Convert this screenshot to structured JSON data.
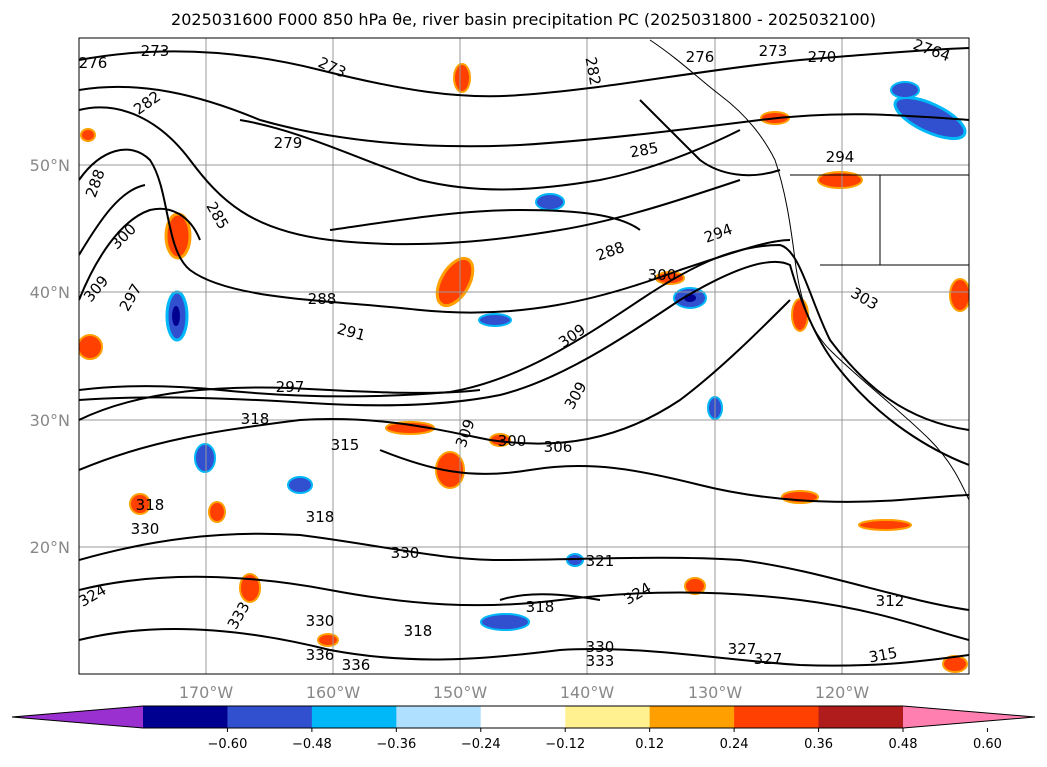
{
  "title": "2025031600 F000 850 hPa θe, river basin precipitation PC (2025031800 - 2025032100)",
  "map": {
    "lon_range": [
      -180,
      -110
    ],
    "lat_range": [
      10,
      60
    ],
    "lat_labels": [
      "50°N",
      "40°N",
      "30°N",
      "20°N"
    ],
    "lon_labels": [
      "170°W",
      "160°W",
      "150°W",
      "140°W",
      "130°W",
      "120°W"
    ],
    "contour_labels": [
      "273",
      "276",
      "273",
      "276",
      "273",
      "270",
      "2764",
      "282",
      "282",
      "279",
      "285",
      "294",
      "288",
      "285",
      "300",
      "294",
      "288",
      "309",
      "297",
      "288",
      "291",
      "303",
      "309",
      "297",
      "318",
      "300",
      "306",
      "315",
      "309",
      "309",
      "300",
      "318",
      "330",
      "318",
      "330",
      "321",
      "324",
      "318",
      "312",
      "336",
      "330",
      "333",
      "327",
      "327",
      "315",
      "333",
      "324",
      "330",
      "336",
      "318"
    ]
  },
  "colorbar": {
    "ticks": [
      "−0.60",
      "−0.48",
      "−0.36",
      "−0.24",
      "−0.12",
      "0.12",
      "0.24",
      "0.36",
      "0.48",
      "0.60"
    ],
    "colors": [
      "#9a30d0",
      "#000090",
      "#3050d0",
      "#00b8f8",
      "#b0e0ff",
      "#ffffff",
      "#fff090",
      "#ffa000",
      "#ff4000",
      "#b01c1c",
      "#ff80b0"
    ]
  }
}
